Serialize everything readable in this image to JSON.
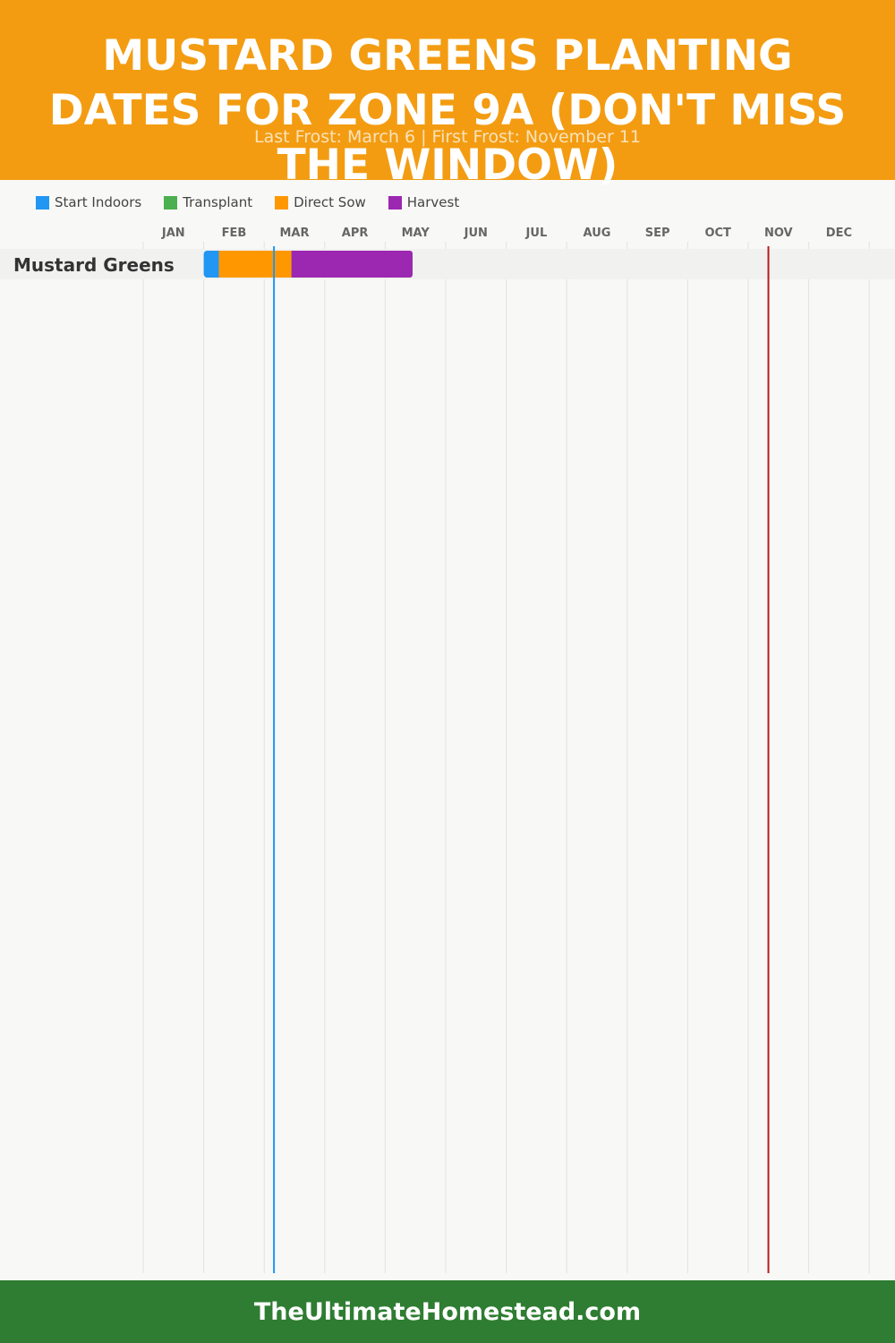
{
  "header": {
    "title": "Mustard Greens Planting Dates for Zone 9A (Don't Miss the Window)",
    "subtitle": "Last Frost: March 6 | First Frost: November 11"
  },
  "legend": [
    {
      "label": "Start Indoors",
      "color": "#2196f3"
    },
    {
      "label": "Transplant",
      "color": "#4caf50"
    },
    {
      "label": "Direct Sow",
      "color": "#ff9800"
    },
    {
      "label": "Harvest",
      "color": "#9c27b0"
    }
  ],
  "chart_data": {
    "type": "gantt",
    "months": [
      "JAN",
      "FEB",
      "MAR",
      "APR",
      "MAY",
      "JUN",
      "JUL",
      "AUG",
      "SEP",
      "OCT",
      "NOV",
      "DEC"
    ],
    "rows": [
      {
        "label": "Mustard Greens",
        "segments": [
          {
            "phase": "Start Indoors",
            "start": "Feb 1",
            "end": "Feb 8",
            "color": "#2196f3"
          },
          {
            "phase": "Direct Sow",
            "start": "Feb 8",
            "end": "Mar 15",
            "color": "#ff9800"
          },
          {
            "phase": "Harvest",
            "start": "Mar 15",
            "end": "May 15",
            "color": "#9c27b0"
          }
        ]
      }
    ],
    "markers": [
      {
        "name": "Last Frost",
        "date": "Mar 6",
        "color": "#2196f3"
      },
      {
        "name": "First Frost",
        "date": "Nov 11",
        "color": "#b71c1c"
      }
    ]
  },
  "footer": {
    "text": "TheUltimateHomestead.com"
  }
}
